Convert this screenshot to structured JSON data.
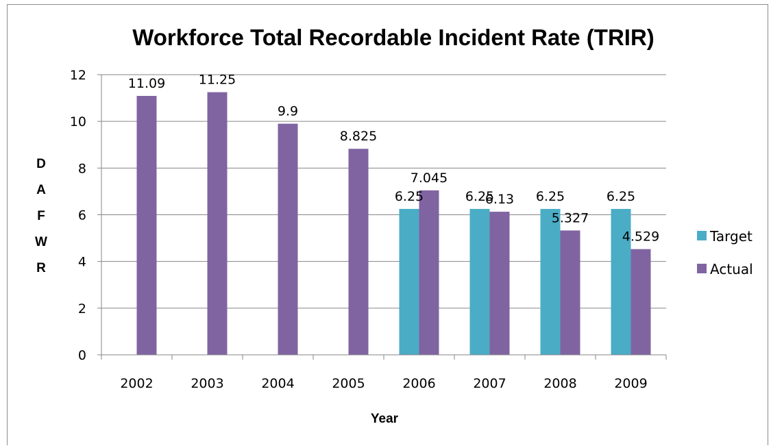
{
  "chart_data": {
    "type": "bar",
    "title": "Workforce Total Recordable Incident Rate (TRIR)",
    "xlabel": "Year",
    "ylabel": "DAFWR",
    "ylim": [
      0,
      12
    ],
    "yticks": [
      "0",
      "2",
      "4",
      "6",
      "8",
      "10",
      "12"
    ],
    "grid": true,
    "legend_position": "right",
    "categories": [
      "2002",
      "2003",
      "2004",
      "2005",
      "2006",
      "2007",
      "2008",
      "2009"
    ],
    "series": [
      {
        "name": "Target",
        "color": "#4bacc6",
        "values": [
          null,
          null,
          null,
          null,
          6.25,
          6.25,
          6.25,
          6.25
        ],
        "labels": [
          "",
          "",
          "",
          "",
          "6.25",
          "6.25",
          "6.25",
          "6.25"
        ]
      },
      {
        "name": "Actual",
        "color": "#8064a2",
        "values": [
          11.09,
          11.25,
          9.9,
          8.825,
          7.045,
          6.13,
          5.327,
          4.529
        ],
        "labels": [
          "11.09",
          "11.25",
          "9.9",
          "8.825",
          "7.045",
          "6.13",
          "5.327",
          "4.529"
        ]
      }
    ]
  }
}
